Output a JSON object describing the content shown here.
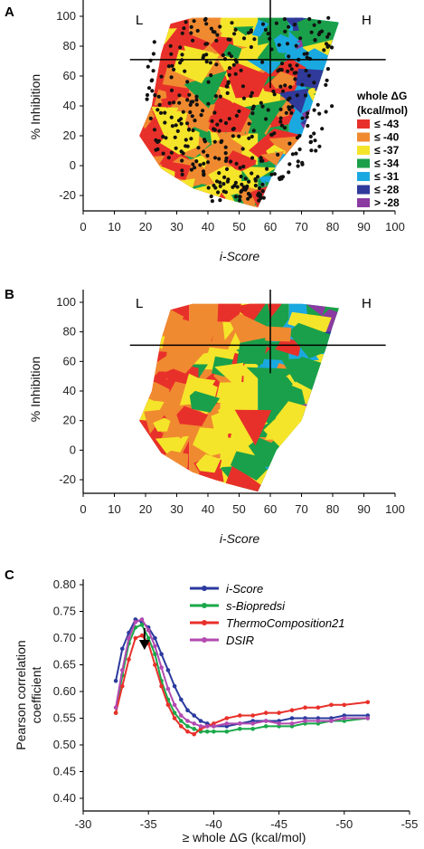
{
  "colors": {
    "red": "#e8302a",
    "orange": "#f08a30",
    "yellow": "#f5e52a",
    "green": "#1aa04a",
    "cyan": "#1aa8e0",
    "navy": "#2f3a9a",
    "purple": "#8a3aa0",
    "iscore": "#2b3a9e",
    "sbio": "#1aa84a",
    "thermo": "#e8302a",
    "dsir": "#b24ab0"
  },
  "chart_data": [
    {
      "panel": "A",
      "type": "scatter",
      "xlabel": "i-Score",
      "ylabel": "% Inhibition",
      "xlim": [
        0,
        100
      ],
      "ylim": [
        -30,
        110
      ],
      "xticks": [
        "0",
        "10",
        "20",
        "30",
        "40",
        "50",
        "60",
        "70",
        "80",
        "90",
        "100"
      ],
      "yticks": [
        "100",
        "80",
        "60",
        "40",
        "20",
        "0",
        "-20"
      ],
      "region_labels": [
        "L",
        "H"
      ],
      "legend_title": [
        "whole ΔG",
        "(kcal/mol)"
      ],
      "legend": [
        {
          "label": "≤ -43",
          "color": "#e8302a"
        },
        {
          "label": "≤ -40",
          "color": "#f08a30"
        },
        {
          "label": "≤ -37",
          "color": "#f5e52a"
        },
        {
          "label": "≤ -34",
          "color": "#1aa04a"
        },
        {
          "label": "≤ -31",
          "color": "#1aa8e0"
        },
        {
          "label": "≤ -28",
          "color": "#2f3a9a"
        },
        {
          "label": "> -28",
          "color": "#8a3aa0"
        }
      ],
      "thresholds": {
        "x": 60,
        "y": 71
      },
      "hull": [
        [
          28,
          95
        ],
        [
          35,
          99
        ],
        [
          55,
          99
        ],
        [
          70,
          99
        ],
        [
          82,
          96
        ],
        [
          80,
          84
        ],
        [
          78,
          70
        ],
        [
          70,
          20
        ],
        [
          62,
          0
        ],
        [
          56,
          -28
        ],
        [
          45,
          -22
        ],
        [
          35,
          -15
        ],
        [
          25,
          -2
        ],
        [
          18,
          20
        ],
        [
          22,
          40
        ],
        [
          25,
          75
        ]
      ],
      "points_note": "several hundred siRNA points scattered inside the hull"
    },
    {
      "panel": "B",
      "type": "heatmap",
      "xlabel": "i-Score",
      "ylabel": "% Inhibition",
      "xlim": [
        0,
        100
      ],
      "ylim": [
        -30,
        110
      ],
      "xticks": [
        "0",
        "10",
        "20",
        "30",
        "40",
        "50",
        "60",
        "70",
        "80",
        "90",
        "100"
      ],
      "yticks": [
        "100",
        "80",
        "60",
        "40",
        "20",
        "0",
        "-20"
      ],
      "region_labels": [
        "L",
        "H"
      ],
      "thresholds": {
        "x": 60,
        "y": 71
      }
    },
    {
      "panel": "C",
      "type": "line",
      "xlabel": "≥ whole ΔG (kcal/mol)",
      "ylabel": [
        "Pearson correlation",
        "coefficient"
      ],
      "xlim": [
        -30,
        -55
      ],
      "ylim": [
        0.4,
        0.8
      ],
      "xticks": [
        "-30",
        "-35",
        "-40",
        "-45",
        "-50",
        "-55"
      ],
      "yticks": [
        "0.80",
        "0.75",
        "0.70",
        "0.65",
        "0.60",
        "0.55",
        "0.50",
        "0.45",
        "0.40"
      ],
      "arrow_at": -34.7,
      "x": [
        -32.5,
        -33.0,
        -33.5,
        -34.0,
        -34.5,
        -35.0,
        -35.5,
        -36.0,
        -36.5,
        -37.0,
        -37.5,
        -38.0,
        -38.5,
        -39.0,
        -39.5,
        -40.0,
        -41.0,
        -42.0,
        -43.0,
        -44.0,
        -45.0,
        -46.0,
        -47.0,
        -48.0,
        -49.0,
        -50.0,
        -51.8
      ],
      "series": [
        {
          "name": "i-Score",
          "color": "#2b3a9e",
          "values": [
            0.62,
            0.68,
            0.71,
            0.735,
            0.73,
            0.72,
            0.7,
            0.67,
            0.64,
            0.61,
            0.585,
            0.565,
            0.555,
            0.545,
            0.54,
            0.535,
            0.535,
            0.54,
            0.545,
            0.545,
            0.545,
            0.55,
            0.55,
            0.55,
            0.55,
            0.555,
            0.555
          ]
        },
        {
          "name": "s-Biopredsi",
          "color": "#1aa84a",
          "values": [
            0.56,
            0.63,
            0.69,
            0.72,
            0.725,
            0.7,
            0.67,
            0.62,
            0.585,
            0.56,
            0.545,
            0.535,
            0.53,
            0.525,
            0.525,
            0.525,
            0.525,
            0.53,
            0.53,
            0.535,
            0.535,
            0.535,
            0.54,
            0.54,
            0.545,
            0.545,
            0.55
          ]
        },
        {
          "name": "ThermoComposition21",
          "color": "#e8302a",
          "values": [
            0.56,
            0.61,
            0.66,
            0.7,
            0.705,
            0.69,
            0.65,
            0.61,
            0.575,
            0.55,
            0.535,
            0.525,
            0.52,
            0.53,
            0.535,
            0.54,
            0.55,
            0.555,
            0.555,
            0.56,
            0.56,
            0.565,
            0.57,
            0.57,
            0.575,
            0.575,
            0.58
          ]
        },
        {
          "name": "DSIR",
          "color": "#b24ab0",
          "values": [
            0.57,
            0.64,
            0.7,
            0.73,
            0.735,
            0.715,
            0.685,
            0.645,
            0.605,
            0.575,
            0.555,
            0.545,
            0.54,
            0.535,
            0.535,
            0.535,
            0.54,
            0.54,
            0.54,
            0.545,
            0.54,
            0.54,
            0.545,
            0.545,
            0.545,
            0.55,
            0.55
          ]
        }
      ]
    }
  ]
}
